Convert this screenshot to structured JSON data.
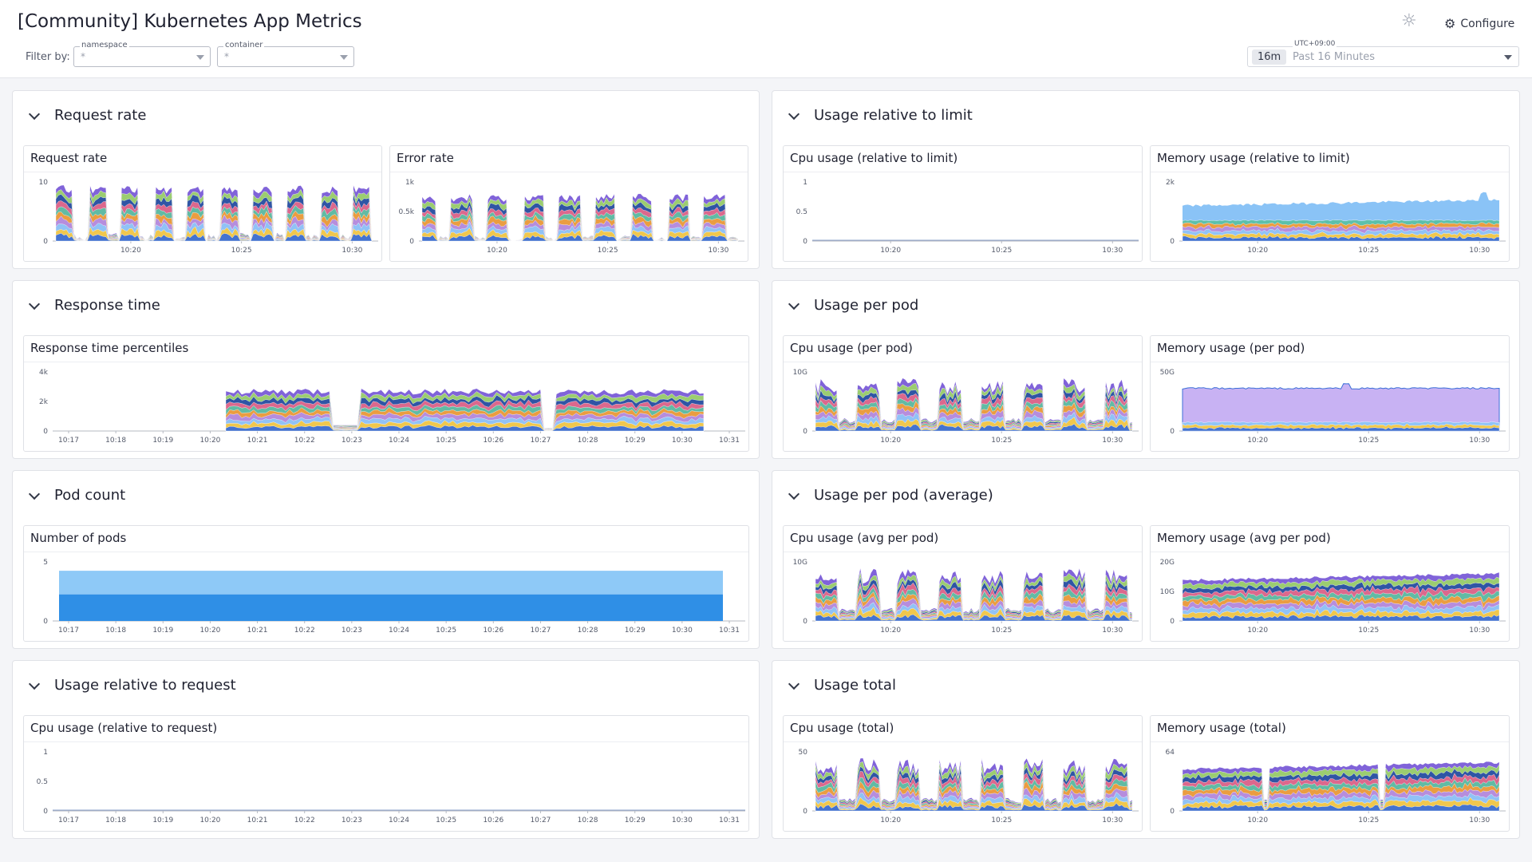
{
  "header": {
    "title": "[Community] Kubernetes App Metrics",
    "filter_label": "Filter by:",
    "configure_label": "Configure",
    "filters": [
      {
        "label": "namespace",
        "value": "*"
      },
      {
        "label": "container",
        "value": "*"
      }
    ],
    "time": {
      "timezone": "UTC+09:00",
      "chip": "16m",
      "range": "Past 16 Minutes"
    }
  },
  "colors": {
    "accent": "#632ca6",
    "stack": [
      "#3b6fd8",
      "#f6c844",
      "#8ec5f8",
      "#b48de6",
      "#f29c3c",
      "#5bc0a6",
      "#e66a8c",
      "#2a4fa8",
      "#9dd36b",
      "#7a5bd8"
    ],
    "pod_light": "#8ec9f7",
    "pod_dark": "#2f8fe6",
    "mem_limit": "#7dbdf5",
    "mem_pod": "#c8b2f3"
  },
  "axes": {
    "short": [
      "10:20",
      "10:25",
      "10:30"
    ],
    "long": [
      "10:17",
      "10:18",
      "10:19",
      "10:20",
      "10:21",
      "10:22",
      "10:23",
      "10:24",
      "10:25",
      "10:26",
      "10:27",
      "10:28",
      "10:29",
      "10:30",
      "10:31"
    ]
  },
  "groups": [
    {
      "title": "Request rate",
      "widgets": [
        {
          "title": "Request rate",
          "yticks": [
            "10",
            "0"
          ]
        },
        {
          "title": "Error rate",
          "yticks": [
            "1k",
            "0.5k",
            "0"
          ]
        }
      ]
    },
    {
      "title": "Usage relative to limit",
      "widgets": [
        {
          "title": "Cpu usage (relative to limit)",
          "yticks": [
            "1",
            "0.5",
            "0"
          ]
        },
        {
          "title": "Memory usage (relative to limit)",
          "yticks": [
            "2k",
            "0"
          ]
        }
      ]
    },
    {
      "title": "Response time",
      "widgets": [
        {
          "title": "Response time percentiles",
          "yticks": [
            "4k",
            "2k",
            "0"
          ]
        }
      ]
    },
    {
      "title": "Usage per pod",
      "widgets": [
        {
          "title": "Cpu usage (per pod)",
          "yticks": [
            "10G",
            "0"
          ]
        },
        {
          "title": "Memory usage (per pod)",
          "yticks": [
            "50G",
            "0"
          ]
        }
      ]
    },
    {
      "title": "Pod count",
      "widgets": [
        {
          "title": "Number of pods",
          "yticks": [
            "5",
            "0"
          ]
        }
      ]
    },
    {
      "title": "Usage per pod (average)",
      "widgets": [
        {
          "title": "Cpu usage (avg per pod)",
          "yticks": [
            "10G",
            "0"
          ]
        },
        {
          "title": "Memory usage (avg per pod)",
          "yticks": [
            "20G",
            "10G",
            "0"
          ]
        }
      ]
    },
    {
      "title": "Usage relative to request",
      "widgets": [
        {
          "title": "Cpu usage (relative to request)",
          "yticks": [
            "1",
            "0.5",
            "0"
          ]
        }
      ]
    },
    {
      "title": "Usage total",
      "widgets": [
        {
          "title": "Cpu usage (total)",
          "yticks": [
            "50",
            "0"
          ]
        },
        {
          "title": "Memory usage (total)",
          "yticks": [
            "64",
            "0"
          ]
        }
      ]
    }
  ]
}
